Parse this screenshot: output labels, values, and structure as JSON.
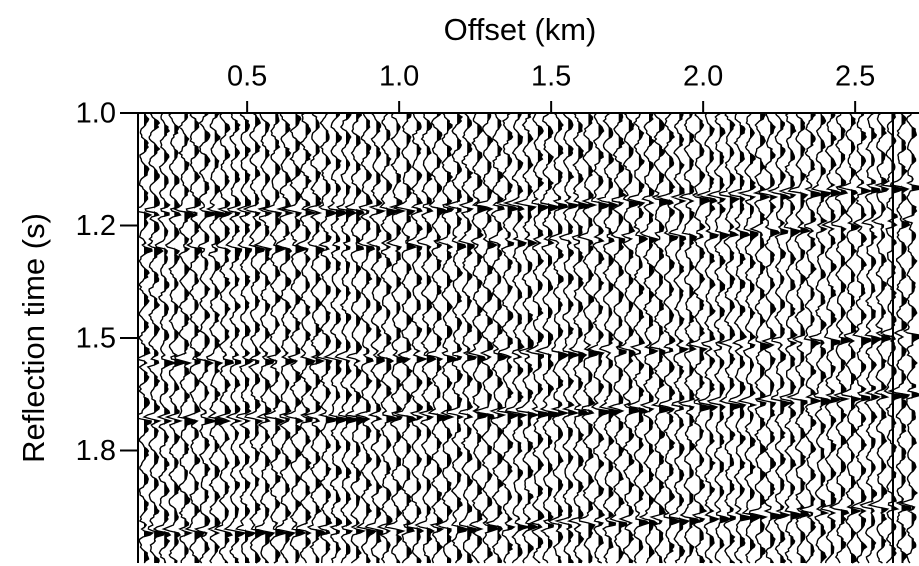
{
  "chart_data": {
    "type": "seismic-gather",
    "xlabel": "Offset (km)",
    "ylabel": "Reflection time (s)",
    "xlim": [
      0.141,
      2.71
    ],
    "xticks": [
      0.5,
      {
        "value": 1.0,
        "label": "1.0"
      },
      1.5,
      {
        "value": 2.0,
        "label": "2.0"
      },
      2.5
    ],
    "ylim": [
      1.0,
      2.0
    ],
    "yticks": [
      {
        "value": 1.0,
        "label": "1.0"
      },
      {
        "value": 1.25,
        "label": "1.2"
      },
      1.5,
      {
        "value": 1.75,
        "label": "1.8"
      }
    ],
    "color": "#000000"
  }
}
